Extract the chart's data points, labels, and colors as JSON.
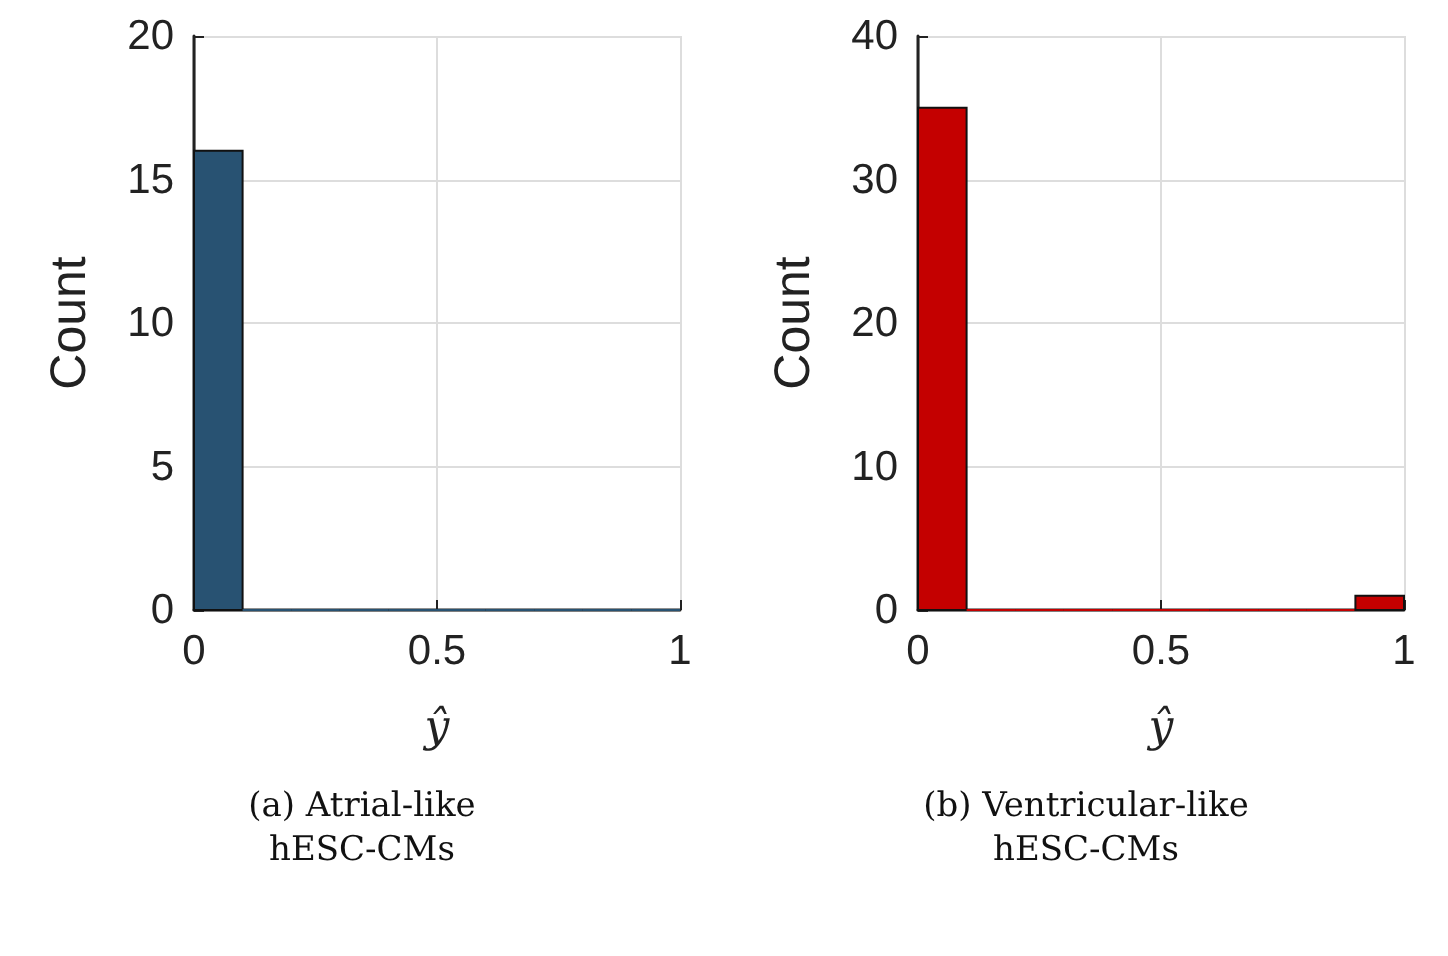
{
  "chart_data": [
    {
      "type": "histogram",
      "bins": [
        0,
        0.1,
        0.2,
        0.3,
        0.4,
        0.5,
        0.6,
        0.7,
        0.8,
        0.9,
        1.0
      ],
      "values": [
        16,
        0,
        0,
        0,
        0,
        0,
        0,
        0,
        0,
        0
      ],
      "color": "#285272",
      "xlabel": "ŷ",
      "ylabel": "Count",
      "xlim": [
        0,
        1
      ],
      "xticks": [
        0,
        0.5,
        1
      ],
      "ylim": [
        0,
        20
      ],
      "yticks": [
        0,
        5,
        10,
        15,
        20
      ],
      "grid": true,
      "annotations": [
        "(a) Atrial-like\nhESC-CMs"
      ]
    },
    {
      "type": "histogram",
      "bins": [
        0,
        0.1,
        0.2,
        0.3,
        0.4,
        0.5,
        0.6,
        0.7,
        0.8,
        0.9,
        1.0
      ],
      "values": [
        35,
        0,
        0,
        0,
        0,
        0,
        0,
        0,
        0,
        1
      ],
      "color": "#c40000",
      "xlabel": "ŷ",
      "ylabel": "Count",
      "xlim": [
        0,
        1
      ],
      "xticks": [
        0,
        0.5,
        1
      ],
      "ylim": [
        0,
        40
      ],
      "yticks": [
        0,
        10,
        20,
        30,
        40
      ],
      "grid": true,
      "annotations": [
        "(b) Ventricular-like\nhESC-CMs"
      ]
    }
  ]
}
